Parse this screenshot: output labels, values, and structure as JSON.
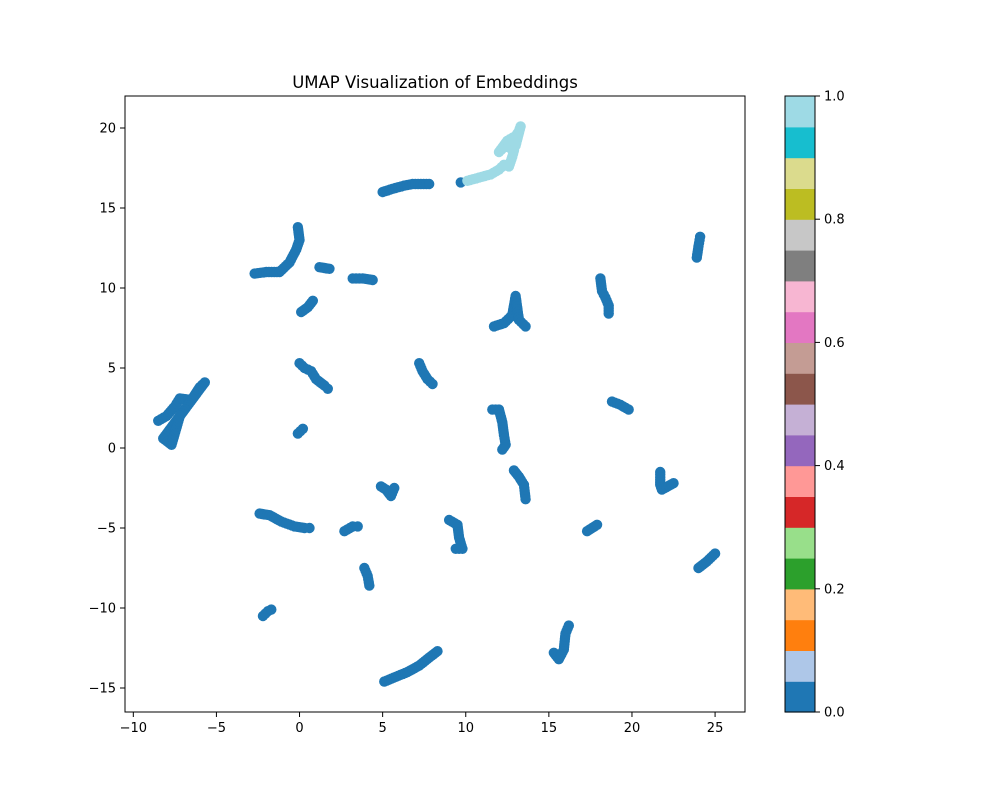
{
  "chart_data": {
    "type": "scatter",
    "title": "UMAP Visualization of Embeddings",
    "xlabel": "",
    "ylabel": "",
    "xlim": [
      -10.5,
      26.8
    ],
    "ylim": [
      -16.5,
      22
    ],
    "xticks": [
      -10,
      -5,
      0,
      5,
      10,
      15,
      20,
      25
    ],
    "yticks": [
      -15,
      -10,
      -5,
      0,
      5,
      10,
      15,
      20
    ],
    "grid": false,
    "colormap": "tab20",
    "colorbar": {
      "range": [
        0.0,
        1.0
      ],
      "ticks": [
        "0.0",
        "0.2",
        "0.4",
        "0.6",
        "0.8",
        "1.0"
      ],
      "colors": [
        "#1f77b4",
        "#aec7e8",
        "#ff7f0e",
        "#ffbb78",
        "#2ca02c",
        "#98df8a",
        "#d62728",
        "#ff9896",
        "#9467bd",
        "#c5b0d5",
        "#8c564b",
        "#c49c94",
        "#e377c2",
        "#f7b6d2",
        "#7f7f7f",
        "#c7c7c7",
        "#bcbd22",
        "#dbdb8d",
        "#17becf",
        "#9edae5"
      ]
    },
    "series": [
      {
        "value": 0.0,
        "color": "#1f77b4",
        "clusters": [
          {
            "points": [
              [
                -8.5,
                1.7
              ],
              [
                -8.0,
                2.0
              ],
              [
                -7.5,
                2.6
              ],
              [
                -7.2,
                3.1
              ],
              [
                -6.5,
                3.0
              ],
              [
                -6.0,
                3.8
              ],
              [
                -5.7,
                4.1
              ],
              [
                -8.2,
                0.6
              ],
              [
                -7.7,
                0.2
              ],
              [
                -7.2,
                2.0
              ]
            ]
          },
          {
            "points": [
              [
                -2.7,
                10.9
              ],
              [
                -2.0,
                11.0
              ],
              [
                -1.2,
                11.0
              ],
              [
                -0.6,
                11.6
              ],
              [
                -0.2,
                12.4
              ],
              [
                0.0,
                13.0
              ],
              [
                -0.1,
                13.8
              ]
            ]
          },
          {
            "points": [
              [
                1.2,
                11.3
              ],
              [
                1.8,
                11.2
              ]
            ]
          },
          {
            "points": [
              [
                3.2,
                10.6
              ],
              [
                3.8,
                10.6
              ],
              [
                4.4,
                10.5
              ]
            ]
          },
          {
            "points": [
              [
                0.1,
                8.5
              ],
              [
                0.5,
                8.8
              ],
              [
                0.8,
                9.2
              ]
            ]
          },
          {
            "points": [
              [
                0.0,
                5.3
              ],
              [
                0.3,
                5.0
              ],
              [
                0.7,
                4.8
              ],
              [
                1.0,
                4.3
              ],
              [
                1.5,
                3.9
              ],
              [
                1.7,
                3.7
              ]
            ]
          },
          {
            "points": [
              [
                -0.1,
                0.9
              ],
              [
                0.2,
                1.2
              ]
            ]
          },
          {
            "points": [
              [
                5.0,
                16.0
              ],
              [
                5.6,
                16.2
              ],
              [
                6.3,
                16.4
              ],
              [
                6.8,
                16.5
              ],
              [
                7.3,
                16.5
              ],
              [
                7.8,
                16.5
              ]
            ]
          },
          {
            "points": [
              [
                9.7,
                16.6
              ]
            ]
          },
          {
            "points": [
              [
                7.2,
                5.3
              ],
              [
                7.4,
                4.8
              ],
              [
                7.7,
                4.3
              ],
              [
                8.0,
                4.0
              ]
            ]
          },
          {
            "points": [
              [
                11.6,
                2.4
              ],
              [
                12.0,
                2.4
              ],
              [
                12.2,
                1.6
              ],
              [
                12.3,
                0.8
              ],
              [
                12.4,
                0.2
              ],
              [
                12.2,
                -0.1
              ]
            ]
          },
          {
            "points": [
              [
                12.9,
                -1.4
              ],
              [
                13.2,
                -1.8
              ],
              [
                13.5,
                -2.3
              ],
              [
                13.6,
                -3.2
              ]
            ]
          },
          {
            "points": [
              [
                11.7,
                7.6
              ],
              [
                12.3,
                7.8
              ],
              [
                12.8,
                8.3
              ],
              [
                13.0,
                9.5
              ],
              [
                13.2,
                8.0
              ],
              [
                13.6,
                7.6
              ]
            ]
          },
          {
            "points": [
              [
                18.1,
                10.6
              ],
              [
                18.2,
                9.8
              ],
              [
                18.4,
                9.4
              ],
              [
                18.6,
                8.9
              ],
              [
                18.6,
                8.4
              ]
            ]
          },
          {
            "points": [
              [
                23.9,
                11.9
              ],
              [
                24.0,
                12.6
              ],
              [
                24.1,
                13.2
              ]
            ]
          },
          {
            "points": [
              [
                18.8,
                2.9
              ],
              [
                19.3,
                2.7
              ],
              [
                19.8,
                2.4
              ]
            ]
          },
          {
            "points": [
              [
                21.7,
                -1.5
              ],
              [
                21.7,
                -2.3
              ],
              [
                21.8,
                -2.6
              ],
              [
                22.5,
                -2.2
              ]
            ]
          },
          {
            "points": [
              [
                -2.4,
                -4.1
              ],
              [
                -1.8,
                -4.2
              ],
              [
                -1.1,
                -4.6
              ],
              [
                -0.3,
                -4.9
              ],
              [
                0.3,
                -5.0
              ],
              [
                0.6,
                -5.0
              ]
            ]
          },
          {
            "points": [
              [
                2.7,
                -5.2
              ],
              [
                3.2,
                -4.9
              ],
              [
                3.5,
                -4.9
              ]
            ]
          },
          {
            "points": [
              [
                4.9,
                -2.4
              ],
              [
                5.2,
                -2.6
              ],
              [
                5.5,
                -3.0
              ],
              [
                5.7,
                -2.5
              ]
            ]
          },
          {
            "points": [
              [
                3.9,
                -7.5
              ],
              [
                4.1,
                -8.0
              ],
              [
                4.2,
                -8.6
              ]
            ]
          },
          {
            "points": [
              [
                9.0,
                -4.5
              ],
              [
                9.5,
                -4.8
              ],
              [
                9.6,
                -5.6
              ],
              [
                9.8,
                -6.3
              ],
              [
                9.4,
                -6.3
              ]
            ]
          },
          {
            "points": [
              [
                17.3,
                -5.2
              ],
              [
                17.6,
                -5.0
              ],
              [
                17.9,
                -4.8
              ]
            ]
          },
          {
            "points": [
              [
                24.0,
                -7.5
              ],
              [
                24.5,
                -7.1
              ],
              [
                25.0,
                -6.6
              ]
            ]
          },
          {
            "points": [
              [
                -2.2,
                -10.5
              ],
              [
                -1.9,
                -10.2
              ],
              [
                -1.7,
                -10.1
              ]
            ]
          },
          {
            "points": [
              [
                5.1,
                -14.6
              ],
              [
                5.8,
                -14.3
              ],
              [
                6.5,
                -14.0
              ],
              [
                7.2,
                -13.6
              ],
              [
                7.8,
                -13.1
              ],
              [
                8.3,
                -12.7
              ]
            ]
          },
          {
            "points": [
              [
                15.3,
                -12.8
              ],
              [
                15.6,
                -13.2
              ],
              [
                15.9,
                -12.6
              ],
              [
                16.0,
                -11.6
              ],
              [
                16.2,
                -11.1
              ]
            ]
          }
        ]
      },
      {
        "value": 1.0,
        "color": "#9edae5",
        "clusters": [
          {
            "points": [
              [
                10.1,
                16.7
              ],
              [
                10.8,
                16.9
              ],
              [
                11.5,
                17.1
              ],
              [
                12.0,
                17.4
              ],
              [
                12.3,
                17.7
              ],
              [
                12.6,
                17.6
              ],
              [
                12.8,
                18.2
              ],
              [
                12.9,
                18.6
              ],
              [
                12.4,
                18.9
              ],
              [
                12.0,
                18.5
              ],
              [
                12.5,
                19.2
              ],
              [
                13.0,
                19.5
              ],
              [
                13.2,
                19.8
              ],
              [
                13.3,
                20.1
              ],
              [
                13.0,
                18.9
              ]
            ]
          }
        ]
      }
    ]
  }
}
